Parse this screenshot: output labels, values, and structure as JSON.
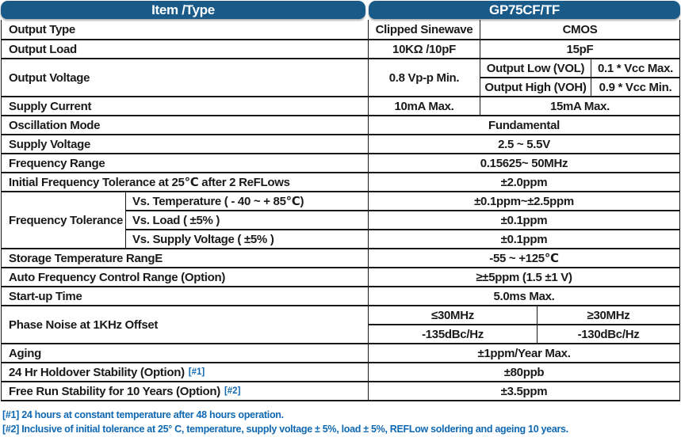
{
  "header": {
    "item_col": "Item /Type",
    "model_col": "GP75CF/TF"
  },
  "colors": {
    "header_bg": "#1a5a89",
    "note_blue": "#0f68b2",
    "border": "#1a1a1a"
  },
  "rows": {
    "output_type": {
      "label": "Output Type",
      "cf": "Clipped Sinewave",
      "tf": "CMOS"
    },
    "output_load": {
      "label": "Output Load",
      "cf": "10KΩ /10pF",
      "tf": "15pF"
    },
    "output_voltage": {
      "label": "Output Voltage",
      "cf": "0.8 Vp-p Min.",
      "vol_label": "Output Low (VOL)",
      "vol_value": "0.1 * Vcc Max.",
      "voh_label": "Output High (VOH)",
      "voh_value": "0.9 * Vcc Min."
    },
    "supply_current": {
      "label": "Supply Current",
      "cf": "10mA Max.",
      "tf": "15mA Max."
    },
    "oscillation_mode": {
      "label": "Oscillation Mode",
      "value": "Fundamental"
    },
    "supply_voltage": {
      "label": "Supply Voltage",
      "value": "2.5 ~ 5.5V"
    },
    "frequency_range": {
      "label": "Frequency Range",
      "value": "0.15625~ 50MHz"
    },
    "initial_tolerance": {
      "label": "Initial Frequency Tolerance at 25℃ after 2 ReFLows",
      "value": "±2.0ppm"
    },
    "frequency_tolerance": {
      "label": "Frequency Tolerance",
      "subrows": [
        {
          "label": "Vs. Temperature ( - 40 ~ + 85℃)",
          "value": "±0.1ppm~±2.5ppm"
        },
        {
          "label": "Vs. Load ( ±5% )",
          "value": "±0.1ppm"
        },
        {
          "label": "Vs. Supply Voltage ( ±5% )",
          "value": "±0.1ppm"
        }
      ]
    },
    "storage_temperature": {
      "label": "Storage Temperature RangE",
      "value": "-55 ~ +125℃"
    },
    "afc_range": {
      "label": "Auto Frequency Control Range (Option)",
      "value": "≥±5ppm (1.5 ±1 V)"
    },
    "startup_time": {
      "label": "Start-up Time",
      "value": "5.0ms Max."
    },
    "phase_noise": {
      "label": "Phase Noise at 1KHz Offset",
      "low_header": "≤30MHz",
      "high_header": "≥30MHz",
      "low_value": "-135dBc/Hz",
      "high_value": "-130dBc/Hz"
    },
    "aging": {
      "label": "Aging",
      "value": "±1ppm/Year Max."
    },
    "holdover": {
      "label": "24 Hr Holdover Stability (Option)",
      "ref": "[#1]",
      "value": "±80ppb"
    },
    "free_run": {
      "label": "Free Run Stability for 10 Years (Option)",
      "ref": "[#2]",
      "value": "±3.5ppm"
    }
  },
  "footnotes": [
    "[#1] 24 hours at constant temperature after 48 hours operation.",
    "[#2] Inclusive of initial tolerance at 25° C, temperature, supply voltage ± 5%, load ± 5%, REFLow soldering and ageing 10 years."
  ]
}
